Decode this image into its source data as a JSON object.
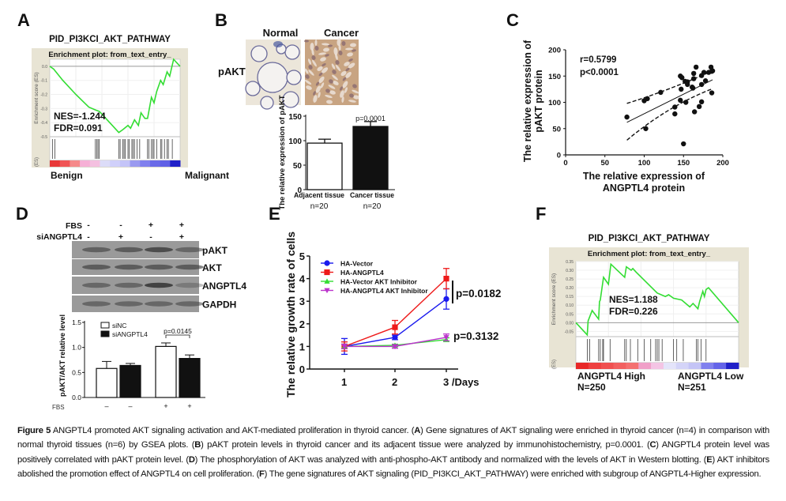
{
  "panels": {
    "A": {
      "label": "A",
      "title": "PID_PI3KCI_AKT_PATHWAY",
      "subtitle": "Enrichment plot: from_text_entry_",
      "ylabel": "Enrichment score (ES)",
      "ylabel_cut": "(ES)",
      "stats": [
        "NES=-1.244",
        "FDR=0.091"
      ],
      "left_label": "Benign",
      "right_label": "Malignant"
    },
    "B": {
      "label": "B",
      "col_labels": [
        "Normal",
        "Cancer"
      ],
      "row_label": "pAKT",
      "p_label": "p=0.0001",
      "n_labels": [
        "n=20",
        "n=20"
      ]
    },
    "C": {
      "label": "C"
    },
    "D": {
      "label": "D",
      "row_labels": [
        "FBS",
        "siANGPTL4"
      ],
      "fbs_signs": [
        "-",
        "-",
        "+",
        "+"
      ],
      "si_signs": [
        "-",
        "+",
        "-",
        "+"
      ],
      "blot_labels": [
        "pAKT",
        "AKT",
        "ANGPTL4",
        "GAPDH"
      ],
      "p_label": "p=0.0145",
      "bottom_row_label": "FBS",
      "bottom_signs": [
        "–",
        "–",
        "+",
        "+"
      ]
    },
    "E": {
      "label": "E",
      "p_labels": [
        "p=0.0182",
        "p=0.3132"
      ]
    },
    "F": {
      "label": "F",
      "title": "PID_PI3KCI_AKT_PATHWAY",
      "subtitle": "Enrichment plot: from_text_entry_",
      "ylabel": "Enrichment score (ES)",
      "ylabel_cut": "(ES)",
      "stats": [
        "NES=1.188",
        "FDR=0.226"
      ],
      "left_label": "ANGPTL4 High",
      "left_n": "N=250",
      "right_label": "ANGPTL4 Low",
      "right_n": "N=251"
    }
  },
  "chart_data": [
    {
      "panel": "A",
      "type": "line",
      "ylim": [
        -0.5,
        0.05
      ],
      "yticks": [
        "0.0",
        "-0.1",
        "-0.2",
        "-0.3",
        "-0.4",
        "-0.5"
      ],
      "line_color": "#33dd33",
      "x": [
        0,
        0.03,
        0.1,
        0.2,
        0.3,
        0.35,
        0.38,
        0.45,
        0.53,
        0.56,
        0.6,
        0.62,
        0.65,
        0.68,
        0.7,
        0.73,
        0.75,
        0.78,
        0.8,
        0.82,
        0.85,
        0.87,
        0.9,
        0.92,
        0.95,
        0.97,
        1
      ],
      "y": [
        0,
        -0.02,
        -0.1,
        -0.2,
        -0.29,
        -0.31,
        -0.32,
        -0.39,
        -0.47,
        -0.45,
        -0.42,
        -0.44,
        -0.38,
        -0.42,
        -0.33,
        -0.37,
        -0.37,
        -0.22,
        -0.26,
        -0.18,
        -0.1,
        -0.13,
        -0.04,
        -0.07,
        0.05,
        0.03,
        0
      ],
      "hits": [
        0.02,
        0.04,
        0.35,
        0.36,
        0.37,
        0.38,
        0.53,
        0.54,
        0.56,
        0.57,
        0.58,
        0.6,
        0.61,
        0.63,
        0.64,
        0.65,
        0.67,
        0.69,
        0.75,
        0.76,
        0.78,
        0.79,
        0.8,
        0.82,
        0.85,
        0.86,
        0.88,
        0.9,
        0.91,
        0.94
      ]
    },
    {
      "panel": "B",
      "type": "bar",
      "categories": [
        "Adjacent tissue",
        "Cancer tissue"
      ],
      "values": [
        95,
        129
      ],
      "errors": [
        8,
        10
      ],
      "colors": [
        "#ffffff",
        "#111111"
      ],
      "ylabel": "The relative expression of pAKT",
      "ylim": [
        0,
        150
      ],
      "yticks": [
        "0",
        "50",
        "100",
        "150"
      ]
    },
    {
      "panel": "C",
      "type": "scatter",
      "stats": [
        "r=0.5799",
        "p<0.0001"
      ],
      "xlabel": "The relative expression of ANGPTL4 protein",
      "ylabel": "The relative expression of pAKT protein",
      "xlim": [
        0,
        200
      ],
      "ylim": [
        0,
        200
      ],
      "xticks": [
        "0",
        "50",
        "100",
        "150",
        "200"
      ],
      "yticks": [
        "0",
        "50",
        "100",
        "150",
        "200"
      ],
      "points": [
        [
          78,
          72
        ],
        [
          100,
          103
        ],
        [
          104,
          107
        ],
        [
          102,
          50
        ],
        [
          121,
          119
        ],
        [
          139,
          91
        ],
        [
          139,
          78
        ],
        [
          146,
          104
        ],
        [
          146,
          150
        ],
        [
          148,
          147
        ],
        [
          147,
          125
        ],
        [
          150,
          21
        ],
        [
          152,
          140
        ],
        [
          153,
          100
        ],
        [
          155,
          139
        ],
        [
          155,
          134
        ],
        [
          161,
          129
        ],
        [
          162,
          127
        ],
        [
          163,
          145
        ],
        [
          163,
          155
        ],
        [
          164,
          82
        ],
        [
          166,
          167
        ],
        [
          170,
          92
        ],
        [
          173,
          151
        ],
        [
          173,
          134
        ],
        [
          173,
          101
        ],
        [
          176,
          157
        ],
        [
          178,
          141
        ],
        [
          182,
          157
        ],
        [
          185,
          167
        ],
        [
          186,
          159
        ],
        [
          186,
          118
        ],
        [
          187,
          160
        ]
      ],
      "fit": [
        [
          78,
          62
        ],
        [
          187,
          143
        ]
      ],
      "ci_upper": [
        [
          78,
          98
        ],
        [
          130,
          122
        ],
        [
          187,
          160
        ]
      ],
      "ci_lower": [
        [
          78,
          28
        ],
        [
          130,
          93
        ],
        [
          187,
          126
        ]
      ]
    },
    {
      "panel": "D",
      "type": "bar",
      "legend": [
        "siNC",
        "siANGPTL4"
      ],
      "ylabel": "pAKT/AKT relative level",
      "ylim": [
        0,
        1.5
      ],
      "yticks": [
        "0.0",
        "0.5",
        "1.0",
        "1.5"
      ],
      "values": [
        0.58,
        0.64,
        1.02,
        0.78
      ],
      "errors": [
        0.14,
        0.04,
        0.07,
        0.07
      ],
      "groups": [
        "siNC",
        "siANGPTL4",
        "siNC",
        "siANGPTL4"
      ],
      "colors": [
        "#ffffff",
        "#111111"
      ]
    },
    {
      "panel": "E",
      "type": "line",
      "ylabel": "The relative growth rate of cells",
      "xticks": [
        "1",
        "2",
        "3 /Days"
      ],
      "x": [
        1,
        2,
        3
      ],
      "ylim": [
        0,
        5
      ],
      "yticks": [
        "0",
        "1",
        "2",
        "3",
        "4",
        "5"
      ],
      "series": [
        {
          "name": "HA-Vector",
          "color": "#1a1aee",
          "marker": "circle",
          "values": [
            1.0,
            1.4,
            3.1
          ],
          "errors": [
            0.35,
            0.1,
            0.45
          ]
        },
        {
          "name": "HA-ANGPTL4",
          "color": "#ee1a1a",
          "marker": "square",
          "values": [
            1.0,
            1.85,
            4.0
          ],
          "errors": [
            0.2,
            0.3,
            0.45
          ]
        },
        {
          "name": "HA-Vector AKT Inhibitor",
          "color": "#33dd33",
          "marker": "triangle-up",
          "values": [
            1.0,
            1.05,
            1.3
          ],
          "errors": [
            0.1,
            0.05,
            0.08
          ]
        },
        {
          "name": "HA-ANGPTL4 AKT Inhibitor",
          "color": "#bb33cc",
          "marker": "triangle-down",
          "values": [
            1.0,
            1.0,
            1.4
          ],
          "errors": [
            0.1,
            0.08,
            0.15
          ]
        }
      ]
    },
    {
      "panel": "F",
      "type": "line",
      "ylim": [
        -0.08,
        0.35
      ],
      "yticks": [
        "0.35",
        "0.30",
        "0.25",
        "0.20",
        "0.15",
        "0.10",
        "0.05",
        "0.00",
        "-0.05"
      ],
      "line_color": "#33dd33",
      "x": [
        0,
        0.07,
        0.075,
        0.1,
        0.14,
        0.145,
        0.15,
        0.17,
        0.2,
        0.215,
        0.3,
        0.31,
        0.34,
        0.35,
        0.37,
        0.5,
        0.55,
        0.57,
        0.6,
        0.65,
        0.7,
        0.72,
        0.75,
        0.76,
        0.78,
        0.79,
        0.8,
        0.815,
        1
      ],
      "y": [
        0,
        -0.07,
        0.01,
        0.07,
        0.02,
        0.12,
        0.13,
        0.26,
        0.22,
        0.335,
        0.26,
        0.32,
        0.3,
        0.31,
        0.29,
        0.17,
        0.15,
        0.16,
        0.14,
        0.13,
        0.09,
        0.11,
        0.08,
        0.12,
        0.18,
        0.15,
        0.19,
        0.2,
        0
      ]
    }
  ],
  "F_hits": [
    0.07,
    0.085,
    0.14,
    0.15,
    0.165,
    0.17,
    0.21,
    0.3,
    0.31,
    0.335,
    0.38,
    0.42,
    0.46,
    0.49,
    0.5,
    0.51,
    0.53,
    0.6,
    0.62,
    0.66,
    0.74,
    0.75,
    0.77,
    0.8
  ],
  "caption": [
    {
      "b": true,
      "t": "Figure 5"
    },
    {
      "t": " ANGPTL4 promoted AKT signaling activation and AKT-mediated proliferation in thyroid cancer. ("
    },
    {
      "b": true,
      "t": "A"
    },
    {
      "t": ") Gene signatures of AKT signaling were enriched in thyroid cancer (n=4) in comparison with normal thyroid tissues (n=6) by GSEA plots. ("
    },
    {
      "b": true,
      "t": "B"
    },
    {
      "t": ") pAKT protein levels in thyroid cancer and its adjacent tissue were analyzed by immunohistochemistry, p=0.0001. ("
    },
    {
      "b": true,
      "t": "C"
    },
    {
      "t": ") ANGPTL4 protein level was positively correlated with pAKT protein level. ("
    },
    {
      "b": true,
      "t": "D"
    },
    {
      "t": ") The phosphorylation of AKT was analyzed with anti-phospho-AKT antibody and normalized with the levels of AKT in Western blotting. ("
    },
    {
      "b": true,
      "t": "E"
    },
    {
      "t": ") AKT inhibitors abolished the promotion effect of ANGPTL4 on cell proliferation. ("
    },
    {
      "b": true,
      "t": "F"
    },
    {
      "t": ") The gene signatures of AKT signaling (PID_PI3KCI_AKT_PATHWAY) were enriched with subgroup of ANGPTL4-Higher expression."
    }
  ]
}
